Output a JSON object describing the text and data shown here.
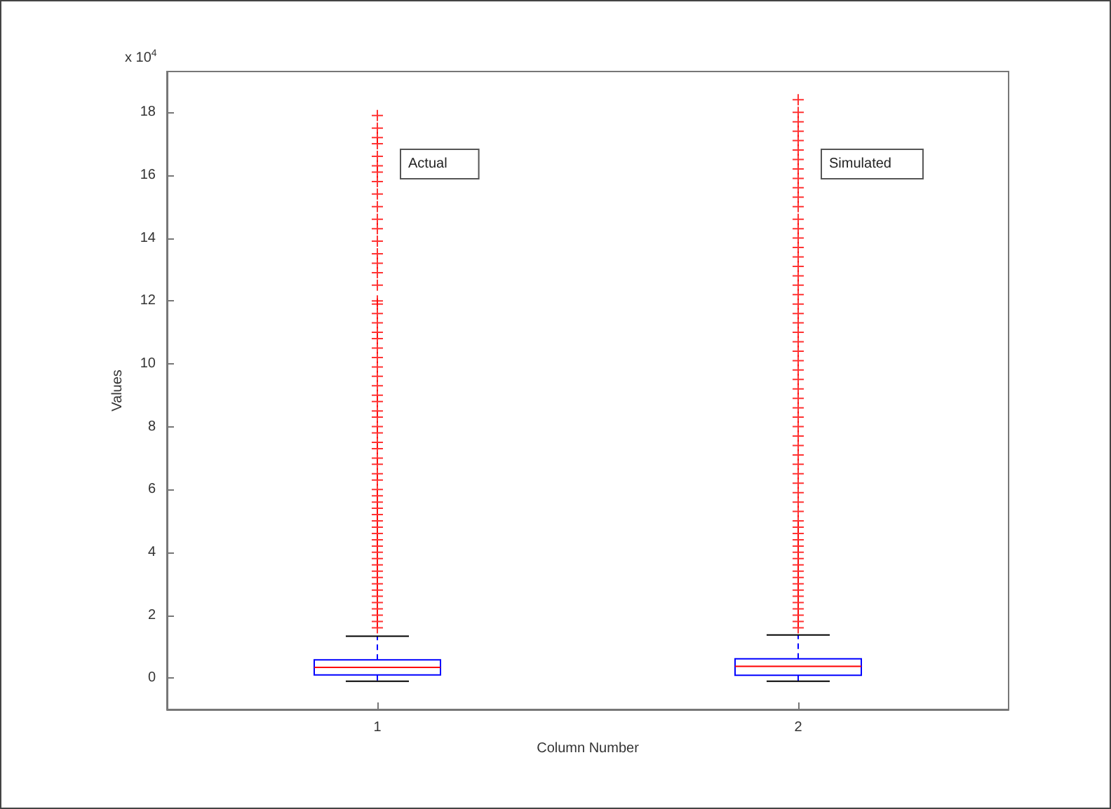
{
  "chart_data": {
    "type": "box",
    "xlabel": "Column Number",
    "ylabel": "Values",
    "categories": [
      "1",
      "2"
    ],
    "ylim": [
      -1,
      19.3
    ],
    "yticks": [
      0,
      2,
      4,
      6,
      8,
      10,
      12,
      14,
      16,
      18
    ],
    "grid": false,
    "marker": "cross",
    "annotations": [
      "x 10$^{4}$",
      "Actual",
      "Simulated"
    ],
    "series": [
      {
        "color": "#0000ff",
        "boxes": [
          {
            "low": -0.1,
            "q1": 0.1,
            "median": 0.34,
            "q3": 0.58,
            "high": 1.33
          },
          {
            "low": -0.1,
            "q1": 0.09,
            "median": 0.37,
            "q3": 0.61,
            "high": 1.37
          }
        ]
      },
      {
        "type": "scatter",
        "color": "#ff0000",
        "x": [
          "1",
          "1",
          "1",
          "1",
          "1",
          "1",
          "1",
          "1",
          "1",
          "1",
          "1",
          "1",
          "1",
          "1",
          "1",
          "1",
          "1",
          "1",
          "1",
          "1",
          "1",
          "1",
          "1",
          "1",
          "1",
          "1",
          "1",
          "1",
          "1",
          "1",
          "1",
          "1",
          "1",
          "1",
          "1",
          "1",
          "1",
          "1",
          "1",
          "1",
          "1",
          "1",
          "1",
          "1",
          "1",
          "1",
          "1",
          "1",
          "1",
          "1",
          "1",
          "1",
          "1",
          "1",
          "1",
          "1",
          "1",
          "1",
          "1",
          "1",
          "1",
          "1",
          "1",
          "2",
          "2",
          "2",
          "2",
          "2",
          "2",
          "2",
          "2",
          "2",
          "2",
          "2",
          "2",
          "2",
          "2",
          "2",
          "2",
          "2",
          "2",
          "2",
          "2",
          "2",
          "2",
          "2",
          "2",
          "2",
          "2",
          "2",
          "2",
          "2",
          "2",
          "2",
          "2",
          "2",
          "2",
          "2",
          "2",
          "2",
          "2",
          "2",
          "2",
          "2",
          "2",
          "2",
          "2",
          "2",
          "2",
          "2",
          "2",
          "2",
          "2",
          "2",
          "2",
          "2",
          "2",
          "2",
          "2",
          "2",
          "2",
          "2",
          "2",
          "2",
          "2"
        ],
        "values": [
          1.6,
          1.8,
          2.0,
          2.2,
          2.4,
          2.6,
          2.8,
          3.0,
          3.2,
          3.4,
          3.6,
          3.8,
          4.0,
          4.2,
          4.4,
          4.6,
          4.8,
          5.0,
          5.2,
          5.4,
          5.6,
          5.8,
          6.0,
          6.3,
          6.5,
          6.8,
          7.0,
          7.3,
          7.5,
          7.8,
          8.0,
          8.3,
          8.5,
          8.8,
          9.0,
          9.3,
          9.6,
          9.9,
          10.2,
          10.5,
          10.8,
          11.0,
          11.3,
          11.6,
          11.9,
          12.0,
          12.5,
          12.9,
          13.2,
          13.5,
          13.9,
          14.3,
          14.6,
          15.0,
          15.4,
          15.8,
          16.1,
          16.3,
          16.6,
          17.0,
          17.2,
          17.5,
          17.9,
          1.6,
          1.8,
          2.0,
          2.2,
          2.4,
          2.6,
          2.8,
          3.0,
          3.2,
          3.4,
          3.6,
          3.8,
          4.0,
          4.2,
          4.4,
          4.6,
          4.8,
          5.0,
          5.3,
          5.6,
          5.9,
          6.2,
          6.5,
          6.8,
          7.1,
          7.4,
          7.7,
          8.0,
          8.3,
          8.6,
          8.9,
          9.2,
          9.5,
          9.8,
          10.1,
          10.4,
          10.7,
          11.0,
          11.3,
          11.6,
          11.9,
          12.2,
          12.5,
          12.8,
          13.1,
          13.4,
          13.7,
          14.0,
          14.3,
          14.6,
          15.0,
          15.3,
          15.6,
          15.9,
          16.2,
          16.5,
          16.8,
          17.1,
          17.4,
          17.7,
          18.0,
          18.4
        ]
      }
    ]
  }
}
